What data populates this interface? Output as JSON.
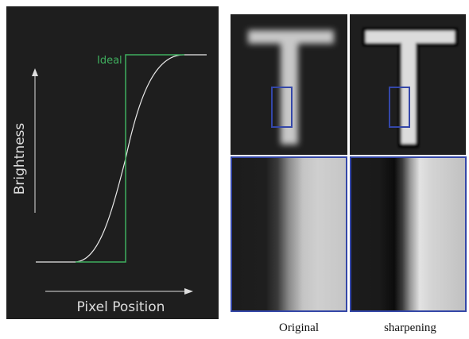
{
  "left_panel": {
    "curve_label": "Ideal",
    "y_axis_label": "Brightness",
    "x_axis_label": "Pixel Position"
  },
  "captions": [
    "Original",
    "sharpening"
  ]
}
